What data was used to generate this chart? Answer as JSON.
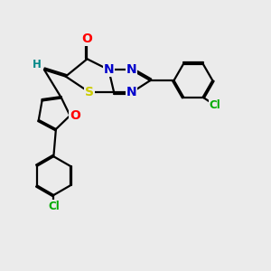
{
  "bg_color": "#ebebeb",
  "bond_color": "#000000",
  "bond_width": 1.6,
  "dbo": 0.06,
  "atom_colors": {
    "O": "#ff0000",
    "N": "#0000cc",
    "S": "#cccc00",
    "Cl": "#00aa00",
    "H": "#008888",
    "C": "#000000"
  },
  "fs_large": 10,
  "fs_small": 8.5
}
